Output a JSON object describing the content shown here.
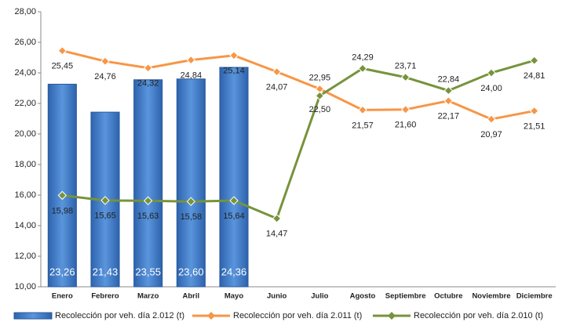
{
  "chart_data": {
    "type": "combo",
    "categories": [
      "Enero",
      "Febrero",
      "Marzo",
      "Abril",
      "Mayo",
      "Junio",
      "Julio",
      "Agosto",
      "Septiembre",
      "Octubre",
      "Noviembre",
      "Diciembre"
    ],
    "ylim": [
      10,
      28
    ],
    "yticks": [
      {
        "value": 10,
        "label": "10,00"
      },
      {
        "value": 12,
        "label": "12,00"
      },
      {
        "value": 14,
        "label": "14,00"
      },
      {
        "value": 16,
        "label": "16,00"
      },
      {
        "value": 18,
        "label": "18,00"
      },
      {
        "value": 20,
        "label": "20,00"
      },
      {
        "value": 22,
        "label": "22,00"
      },
      {
        "value": 24,
        "label": "24,00"
      },
      {
        "value": 26,
        "label": "26,00"
      },
      {
        "value": 28,
        "label": "28,00"
      }
    ],
    "grid": false,
    "legend": "bottom",
    "series": [
      {
        "name": "Recolección por veh. día 2.012 (t)",
        "type": "bar",
        "color": "#3d78c4",
        "values": [
          23.26,
          21.43,
          23.55,
          23.6,
          24.36,
          null,
          null,
          null,
          null,
          null,
          null,
          null
        ],
        "value_labels": [
          "23,26",
          "21,43",
          "23,55",
          "23,60",
          "24,36",
          null,
          null,
          null,
          null,
          null,
          null,
          null
        ]
      },
      {
        "name": "Recolección por veh. día 2.011 (t)",
        "type": "line",
        "color": "#f79646",
        "values": [
          25.45,
          24.76,
          24.32,
          24.84,
          25.14,
          24.07,
          22.95,
          21.57,
          21.6,
          22.17,
          20.97,
          21.51
        ],
        "value_labels": [
          "25,45",
          "24,76",
          "24,32",
          "24,84",
          "25,14",
          "24,07",
          "22,95",
          "21,57",
          "21,60",
          "22,17",
          "20,97",
          "21,51"
        ]
      },
      {
        "name": "Recolección por veh. día 2.010 (t)",
        "type": "line",
        "color": "#77933c",
        "values": [
          15.98,
          15.65,
          15.63,
          15.58,
          15.64,
          14.47,
          22.5,
          24.29,
          23.71,
          22.84,
          24.0,
          24.81
        ],
        "value_labels": [
          "15,98",
          "15,65",
          "15,63",
          "15,58",
          "15,64",
          "14,47",
          "22,50",
          "24,29",
          "23,71",
          "22,84",
          "24,00",
          "24,81"
        ]
      }
    ]
  }
}
